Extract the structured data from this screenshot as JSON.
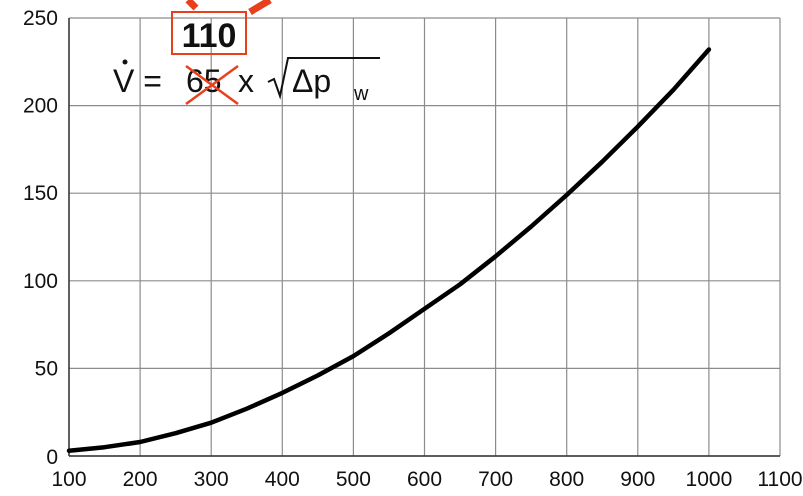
{
  "chart_data": {
    "type": "line",
    "title": "",
    "xlabel": "",
    "ylabel": "",
    "x_ticks": [
      "100",
      "200",
      "300",
      "400",
      "500",
      "600",
      "700",
      "800",
      "900",
      "1000",
      "1100"
    ],
    "y_ticks": [
      "0",
      "50",
      "100",
      "150",
      "200",
      "250"
    ],
    "xlim": [
      100,
      1100
    ],
    "ylim": [
      0,
      250
    ],
    "grid": true,
    "series": [
      {
        "name": "",
        "x": [
          100,
          150,
          200,
          250,
          300,
          350,
          400,
          450,
          500,
          550,
          600,
          650,
          700,
          750,
          800,
          850,
          900,
          950,
          1000
        ],
        "y": [
          3,
          5,
          8,
          13,
          19,
          27,
          36,
          46,
          57,
          70,
          84,
          98,
          114,
          131,
          149,
          168,
          188,
          209,
          232
        ]
      }
    ],
    "annotation": {
      "formula_lhs": "V = ",
      "formula_old_coefficient": "65",
      "formula_rhs": " x ",
      "formula_radicand": "Δp",
      "formula_subscript": "w",
      "corrected_coefficient": "110"
    },
    "colors": {
      "line": "#000000",
      "grid": "#8c8c8c",
      "correction": "#e8401c"
    }
  }
}
